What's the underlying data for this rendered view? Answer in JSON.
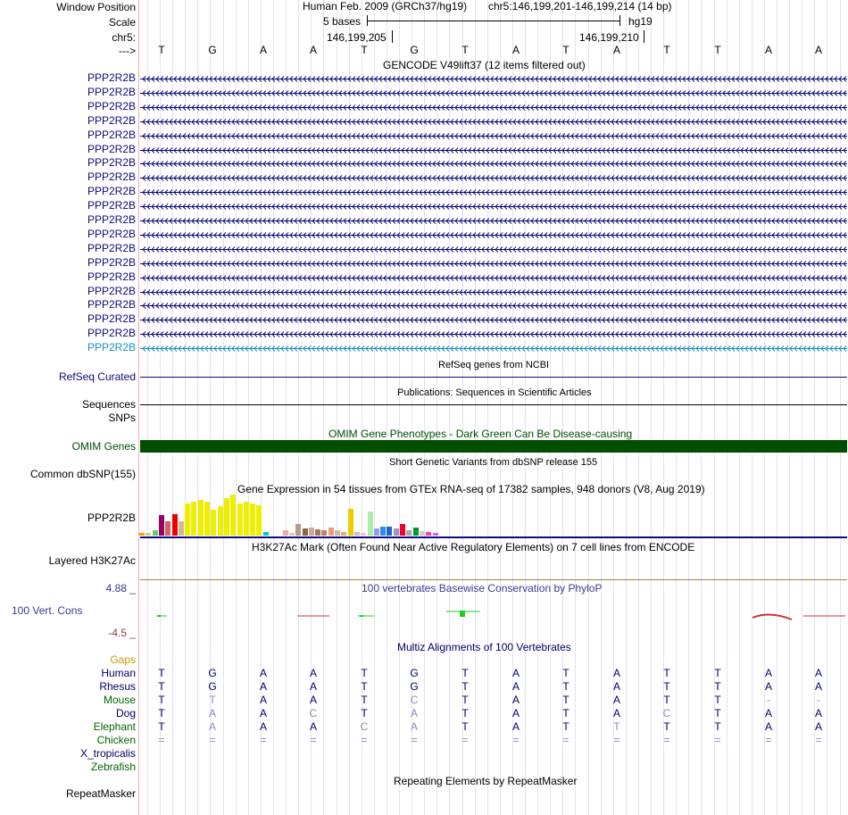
{
  "header": {
    "window_position_label": "Window Position",
    "scale_label": "Scale",
    "chrom_label": "chr5:",
    "strand_label": "--->",
    "assembly": "Human Feb. 2009 (GRCh37/hg19)",
    "position": "chr5:146,199,201-146,199,214 (14 bp)",
    "scale_text": "5 bases",
    "db": "hg19",
    "tick1": "146,199,205",
    "tick2": "146,199,210"
  },
  "bases": [
    "T",
    "G",
    "A",
    "A",
    "T",
    "G",
    "T",
    "A",
    "T",
    "A",
    "T",
    "T",
    "A",
    "A"
  ],
  "gencode": {
    "title": "GENCODE V49lift37 (12 items filtered out)",
    "items": [
      "PPP2R2B",
      "PPP2R2B",
      "PPP2R2B",
      "PPP2R2B",
      "PPP2R2B",
      "PPP2R2B",
      "PPP2R2B",
      "PPP2R2B",
      "PPP2R2B",
      "PPP2R2B",
      "PPP2R2B",
      "PPP2R2B",
      "PPP2R2B",
      "PPP2R2B",
      "PPP2R2B",
      "PPP2R2B",
      "PPP2R2B",
      "PPP2R2B",
      "PPP2R2B",
      "PPP2R2B"
    ]
  },
  "tracks": {
    "refseq_title": "RefSeq genes from NCBI",
    "refseq_label": "RefSeq Curated",
    "pubs_title": "Publications: Sequences in Scientific Articles",
    "sequences_label": "Sequences",
    "snps_label": "SNPs",
    "omim_title": "OMIM Gene Phenotypes - Dark Green Can Be Disease-causing",
    "omim_label": "OMIM Genes",
    "dbsnp_title": "Short Genetic Variants from dbSNP release 155",
    "dbsnp_label": "Common dbSNP(155)",
    "gtex_title": "Gene Expression in 54 tissues from GTEx RNA-seq of 17382 samples, 948 donors (V8, Aug 2019)",
    "gtex_label": "PPP2R2B",
    "h3k_title": "H3K27Ac Mark (Often Found Near Active Regulatory Elements) on 7 cell lines from ENCODE",
    "h3k_label": "Layered H3K27Ac",
    "cons_title": "100 vertebrates Basewise Conservation by PhyloP",
    "cons_max": "4.88 _",
    "cons_label": "100 Vert. Cons",
    "cons_min": "-4.5 _",
    "multiz_title": "Multiz Alignments of 100 Vertebrates",
    "rmsk_title": "Repeating Elements by RepeatMasker",
    "rmsk_label": "RepeatMasker"
  },
  "gtex_values": [
    3,
    3,
    6,
    23,
    16,
    24,
    16,
    36,
    38,
    40,
    38,
    29,
    33,
    42,
    46,
    36,
    38,
    36,
    34,
    4,
    0,
    0,
    6,
    3,
    13,
    8,
    9,
    7,
    6,
    9,
    6,
    4,
    30,
    4,
    3,
    27,
    8,
    10,
    10,
    8,
    13,
    6,
    9,
    5,
    4,
    3,
    0,
    0,
    0,
    0,
    0,
    0,
    0,
    0
  ],
  "gtex_colors": [
    "#ff9900",
    "#cccc99",
    "#66cc66",
    "#990066",
    "#cc6666",
    "#ee0000",
    "#ccbb99",
    "#eeee00",
    "#eeee00",
    "#eeee00",
    "#eeee00",
    "#eeee00",
    "#eeee00",
    "#eeee00",
    "#eeee00",
    "#eeee00",
    "#eeee00",
    "#eeee00",
    "#eeee00",
    "#00ccdd",
    "#ffffff",
    "#ffffff",
    "#eeaaaa",
    "#ddccbb",
    "#bb9988",
    "#886644",
    "#ccaa99",
    "#aa7766",
    "#bb8866",
    "#ee9977",
    "#ccbbaa",
    "#ddaa77",
    "#eecc00",
    "#ccbbcc",
    "#ffbbcc",
    "#aaeeaa",
    "#9999ee",
    "#3388ee",
    "#2266cc",
    "#9999bb",
    "#ee0033",
    "#aaaaaa",
    "#009933",
    "#cccccc",
    "#ee44aa",
    "#cc66ff",
    "#ffffff",
    "#ffffff",
    "#ffffff",
    "#ffffff",
    "#ffffff",
    "#ffffff",
    "#ffffff",
    "#ffffff"
  ],
  "multiz": {
    "gaps_label": "Gaps",
    "species": [
      {
        "name": "Human",
        "color": "#000066",
        "bases": [
          "T",
          "G",
          "A",
          "A",
          "T",
          "G",
          "T",
          "A",
          "T",
          "A",
          "T",
          "T",
          "A",
          "A"
        ],
        "dim": [
          0,
          0,
          0,
          0,
          0,
          0,
          0,
          0,
          0,
          0,
          0,
          0,
          0,
          0
        ]
      },
      {
        "name": "Rhesus",
        "color": "#000066",
        "bases": [
          "T",
          "G",
          "A",
          "A",
          "T",
          "G",
          "T",
          "A",
          "T",
          "A",
          "T",
          "T",
          "A",
          "A"
        ],
        "dim": [
          0,
          0,
          0,
          0,
          0,
          0,
          0,
          0,
          0,
          0,
          0,
          0,
          0,
          0
        ]
      },
      {
        "name": "Mouse",
        "color": "#006600",
        "bases": [
          "T",
          "T",
          "A",
          "A",
          "T",
          "C",
          "T",
          "A",
          "T",
          "A",
          "T",
          "T",
          "-",
          "-"
        ],
        "dim": [
          0,
          1,
          0,
          0,
          0,
          1,
          0,
          0,
          0,
          0,
          0,
          0,
          1,
          1
        ]
      },
      {
        "name": "Dog",
        "color": "#000066",
        "bases": [
          "T",
          "A",
          "A",
          "C",
          "T",
          "A",
          "T",
          "A",
          "T",
          "A",
          "C",
          "T",
          "A",
          "A"
        ],
        "dim": [
          0,
          1,
          0,
          1,
          0,
          1,
          0,
          0,
          0,
          0,
          1,
          0,
          0,
          0
        ]
      },
      {
        "name": "Elephant",
        "color": "#006600",
        "bases": [
          "T",
          "A",
          "A",
          "A",
          "C",
          "A",
          "T",
          "A",
          "T",
          "T",
          "T",
          "T",
          "A",
          "A"
        ],
        "dim": [
          0,
          1,
          0,
          0,
          1,
          1,
          0,
          0,
          0,
          1,
          0,
          0,
          0,
          0
        ]
      },
      {
        "name": "Chicken",
        "color": "#006600",
        "bases": [
          "=",
          "=",
          "=",
          "=",
          "=",
          "=",
          "=",
          "=",
          "=",
          "=",
          "=",
          "=",
          "=",
          "="
        ],
        "dim": [
          1,
          1,
          1,
          1,
          1,
          1,
          1,
          1,
          1,
          1,
          1,
          1,
          1,
          1
        ]
      },
      {
        "name": "X_tropicalis",
        "color": "#000066",
        "bases": [],
        "dim": []
      },
      {
        "name": "Zebrafish",
        "color": "#006600",
        "bases": [],
        "dim": []
      }
    ]
  },
  "colors": {
    "gene_dark": "#0c0c78",
    "gene_light": "#1e8cbe",
    "omim": "#004f00",
    "phylop_pos": "#3c3c8c",
    "phylop_neg": "#8c3c3c"
  }
}
